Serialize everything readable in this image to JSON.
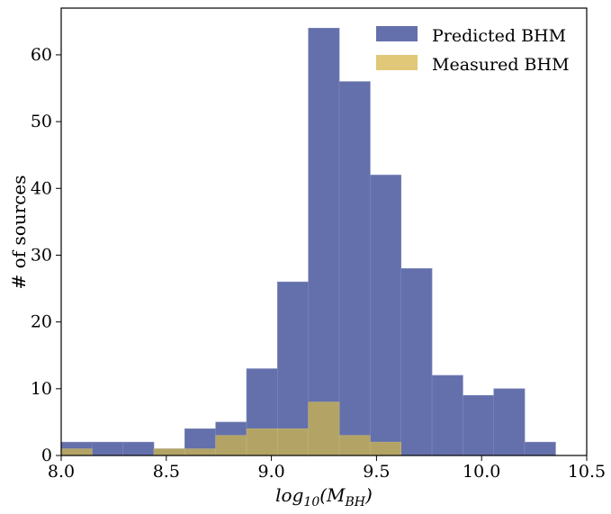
{
  "chart_data": {
    "type": "bar",
    "subtype": "histogram-overlay",
    "title": "",
    "xlabel": "log10(M_BH)",
    "ylabel": "# of sources",
    "xlim": [
      8.0,
      10.5
    ],
    "ylim": [
      0,
      67
    ],
    "xticks": [
      8.0,
      8.5,
      9.0,
      9.5,
      10.0,
      10.5
    ],
    "xtick_labels": [
      "8.0",
      "8.5",
      "9.0",
      "9.5",
      "10.0",
      "10.5"
    ],
    "yticks": [
      0,
      10,
      20,
      30,
      40,
      50,
      60
    ],
    "ytick_labels": [
      "0",
      "10",
      "20",
      "30",
      "40",
      "50",
      "60"
    ],
    "grid": false,
    "legend_position": "top-right",
    "bin_edges": [
      8.0,
      8.147,
      8.294,
      8.441,
      8.588,
      8.735,
      8.882,
      9.029,
      9.176,
      9.323,
      9.47,
      9.617,
      9.764,
      9.911,
      10.058,
      10.205,
      10.352
    ],
    "series": [
      {
        "name": "Predicted BHM",
        "color": "#6470ab",
        "values": [
          2,
          2,
          2,
          1,
          4,
          5,
          13,
          26,
          64,
          56,
          42,
          28,
          12,
          9,
          10,
          2
        ]
      },
      {
        "name": "Measured BHM",
        "color": "#b3a466",
        "legend_color": "#e0c878",
        "values": [
          1,
          0,
          0,
          1,
          1,
          3,
          4,
          4,
          8,
          3,
          2,
          0,
          0,
          0,
          0,
          0
        ]
      }
    ]
  }
}
